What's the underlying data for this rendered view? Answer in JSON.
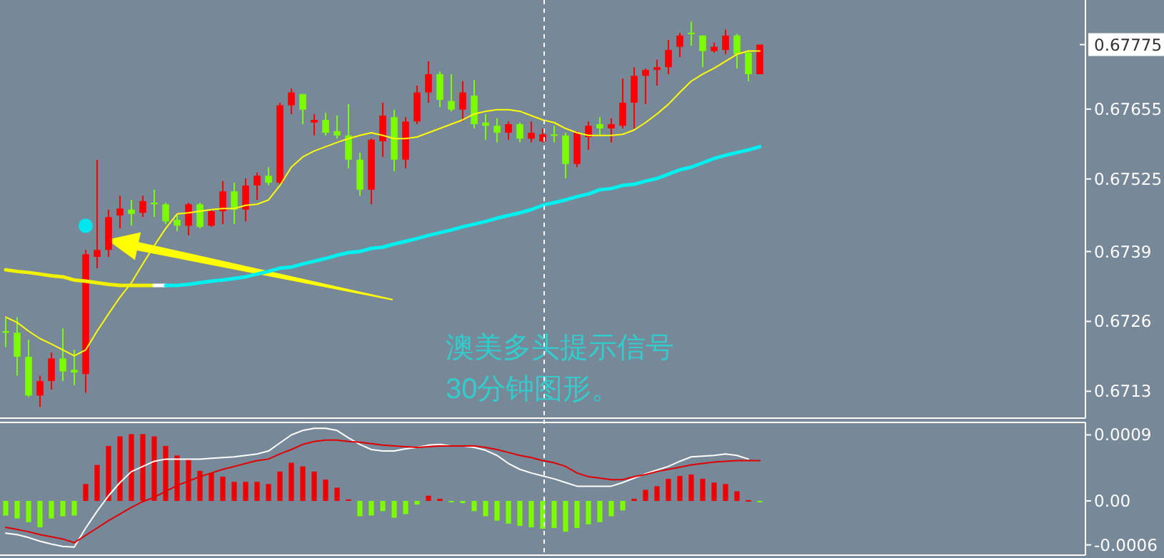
{
  "chart_data": [
    {
      "type": "candlestick",
      "categories": [
        null,
        null,
        null,
        null,
        null,
        null,
        null,
        null,
        null,
        null,
        null,
        null,
        null,
        null,
        null,
        null,
        null,
        null,
        null,
        null,
        null,
        null,
        null,
        null,
        null,
        null,
        null,
        null,
        null,
        null,
        null,
        null,
        null,
        null,
        null,
        null,
        null,
        null,
        null,
        null,
        null,
        null,
        null,
        null,
        null,
        null,
        null,
        null,
        null,
        null,
        null,
        null,
        null,
        null,
        null,
        null,
        null,
        null,
        null,
        null,
        null,
        null,
        null,
        null,
        null,
        null,
        null
      ],
      "ohlc": [
        [
          0.67242,
          0.67266,
          0.67212,
          0.67239
        ],
        [
          0.67239,
          0.67268,
          0.67159,
          0.67194
        ],
        [
          0.67194,
          0.67226,
          0.67119,
          0.67122
        ],
        [
          0.67122,
          0.67159,
          0.67101,
          0.67149
        ],
        [
          0.67149,
          0.67202,
          0.67133,
          0.67191
        ],
        [
          0.67191,
          0.67247,
          0.67149,
          0.67167
        ],
        [
          0.6717,
          0.67207,
          0.67141,
          0.67165
        ],
        [
          0.67162,
          0.67393,
          0.67127,
          0.67385
        ],
        [
          0.6738,
          0.67561,
          0.67359,
          0.67393
        ],
        [
          0.67393,
          0.67468,
          0.6738,
          0.67454
        ],
        [
          0.67457,
          0.67494,
          0.67433,
          0.6747
        ],
        [
          0.67468,
          0.67486,
          0.67438,
          0.6746
        ],
        [
          0.67462,
          0.67494,
          0.67454,
          0.67484
        ],
        [
          0.67481,
          0.67505,
          0.67454,
          0.67478
        ],
        [
          0.67478,
          0.67481,
          0.67441,
          0.67446
        ],
        [
          0.67449,
          0.6746,
          0.67428,
          0.67438
        ],
        [
          0.67438,
          0.67481,
          0.6742,
          0.67478
        ],
        [
          0.67478,
          0.67481,
          0.67433,
          0.67436
        ],
        [
          0.67438,
          0.67468,
          0.67436,
          0.67465
        ],
        [
          0.67465,
          0.67521,
          0.67441,
          0.67502
        ],
        [
          0.67502,
          0.67518,
          0.67441,
          0.67468
        ],
        [
          0.67468,
          0.67526,
          0.67446,
          0.67513
        ],
        [
          0.67513,
          0.67537,
          0.67486,
          0.67531
        ],
        [
          0.67531,
          0.67547,
          0.67513,
          0.67518
        ],
        [
          0.67518,
          0.67667,
          0.67513,
          0.67662
        ],
        [
          0.67662,
          0.67693,
          0.67646,
          0.67686
        ],
        [
          0.67683,
          0.67683,
          0.67627,
          0.67654
        ],
        [
          0.6763,
          0.67646,
          0.67606,
          0.67635
        ],
        [
          0.67635,
          0.67648,
          0.67606,
          0.67611
        ],
        [
          0.67614,
          0.67643,
          0.676,
          0.67606
        ],
        [
          0.67606,
          0.67664,
          0.67545,
          0.67561
        ],
        [
          0.67561,
          0.67574,
          0.67494,
          0.67505
        ],
        [
          0.67505,
          0.676,
          0.67478,
          0.67598
        ],
        [
          0.67595,
          0.67667,
          0.67566,
          0.67643
        ],
        [
          0.6764,
          0.67654,
          0.67539,
          0.67561
        ],
        [
          0.67561,
          0.6764,
          0.67545,
          0.67632
        ],
        [
          0.67632,
          0.67699,
          0.67627,
          0.67686
        ],
        [
          0.67686,
          0.67744,
          0.67667,
          0.6772
        ],
        [
          0.6772,
          0.67725,
          0.67659,
          0.67672
        ],
        [
          0.6767,
          0.6772,
          0.67651,
          0.67654
        ],
        [
          0.67654,
          0.67707,
          0.67632,
          0.67686
        ],
        [
          0.6768,
          0.67709,
          0.67619,
          0.67627
        ],
        [
          0.6763,
          0.67646,
          0.67598,
          0.67624
        ],
        [
          0.67624,
          0.67638,
          0.67593,
          0.67611
        ],
        [
          0.67611,
          0.67632,
          0.67598,
          0.67627
        ],
        [
          0.67627,
          0.6763,
          0.67593,
          0.676
        ],
        [
          0.676,
          0.67632,
          0.67593,
          0.67611
        ],
        [
          0.67595,
          0.67619,
          0.67593,
          0.67608
        ],
        [
          0.67608,
          0.67624,
          0.67593,
          0.67606
        ],
        [
          0.67606,
          0.67611,
          0.67526,
          0.67553
        ],
        [
          0.67553,
          0.67614,
          0.67547,
          0.67611
        ],
        [
          0.67603,
          0.67632,
          0.67579,
          0.67624
        ],
        [
          0.67627,
          0.6764,
          0.67606,
          0.67619
        ],
        [
          0.67619,
          0.67638,
          0.67593,
          0.67627
        ],
        [
          0.67624,
          0.67712,
          0.67619,
          0.67667
        ],
        [
          0.67667,
          0.67733,
          0.67619,
          0.67717
        ],
        [
          0.67717,
          0.67731,
          0.67664,
          0.67728
        ],
        [
          0.67728,
          0.67747,
          0.67699,
          0.67733
        ],
        [
          0.67733,
          0.67784,
          0.6772,
          0.67765
        ],
        [
          0.67771,
          0.67797,
          0.67752,
          0.67792
        ],
        [
          0.67797,
          0.67818,
          0.67773,
          0.67795
        ],
        [
          0.67792,
          0.67792,
          0.67733,
          0.67763
        ],
        [
          0.67763,
          0.67779,
          0.6776,
          0.67771
        ],
        [
          0.67765,
          0.67803,
          0.67757,
          0.67792
        ],
        [
          0.67792,
          0.67795,
          0.67731,
          0.67757
        ],
        [
          0.6776,
          0.67765,
          0.67707,
          0.6772
        ],
        [
          0.6772,
          0.67775,
          0.6772,
          0.67775
        ]
      ],
      "colors": [
        "#7cfc00",
        "#7cfc00",
        "#7cfc00",
        "#ff0000",
        "#ff0000",
        "#7cfc00",
        "#7cfc00",
        "#ff0000",
        "#ff0000",
        "#ff0000",
        "#ff0000",
        "#7cfc00",
        "#ff0000",
        "#7cfc00",
        "#7cfc00",
        "#7cfc00",
        "#ff0000",
        "#7cfc00",
        "#ff0000",
        "#ff0000",
        "#7cfc00",
        "#ff0000",
        "#ff0000",
        "#7cfc00",
        "#ff0000",
        "#ff0000",
        "#7cfc00",
        "#ff0000",
        "#7cfc00",
        "#7cfc00",
        "#7cfc00",
        "#7cfc00",
        "#ff0000",
        "#ff0000",
        "#7cfc00",
        "#ff0000",
        "#ff0000",
        "#ff0000",
        "#7cfc00",
        "#7cfc00",
        "#ff0000",
        "#7cfc00",
        "#7cfc00",
        "#7cfc00",
        "#ff0000",
        "#7cfc00",
        "#ff0000",
        "#ff0000",
        "#7cfc00",
        "#7cfc00",
        "#ff0000",
        "#ff0000",
        "#7cfc00",
        "#ff0000",
        "#ff0000",
        "#ff0000",
        "#ff0000",
        "#ff0000",
        "#ff0000",
        "#ff0000",
        "#7cfc00",
        "#7cfc00",
        "#ff0000",
        "#ff0000",
        "#7cfc00",
        "#7cfc00",
        "#ff0000"
      ],
      "series": [
        {
          "type": "line",
          "color": "#ffff00",
          "values": [
            0.67268,
            0.67258,
            0.67242,
            0.67228,
            0.67218,
            0.67207,
            0.67196,
            0.67207,
            0.67242,
            0.67274,
            0.67305,
            0.67332,
            0.67367,
            0.67401,
            0.67433,
            0.6746,
            0.67462,
            0.67465,
            0.67468,
            0.6747,
            0.6747,
            0.67476,
            0.67478,
            0.67486,
            0.67513,
            0.67547,
            0.67566,
            0.67577,
            0.67585,
            0.67593,
            0.676,
            0.67606,
            0.67611,
            0.67606,
            0.676,
            0.676,
            0.67603,
            0.67611,
            0.67619,
            0.67627,
            0.67635,
            0.67646,
            0.67651,
            0.67654,
            0.67654,
            0.67651,
            0.67643,
            0.67635,
            0.6763,
            0.67619,
            0.67611,
            0.67606,
            0.67606,
            0.67606,
            0.67608,
            0.67616,
            0.6763,
            0.67646,
            0.67664,
            0.67686,
            0.67707,
            0.6772,
            0.67731,
            0.67744,
            0.67757,
            0.67763,
            0.67763
          ]
        },
        {
          "type": "line",
          "color": "#f0f000",
          "values": [
            0.67356,
            0.67353,
            0.67351,
            0.67348,
            0.67345,
            0.67343,
            0.67337,
            0.67335,
            0.67332,
            0.67329,
            0.67327,
            0.67327,
            0.67327,
            0.67327,
            null,
            null,
            null,
            null,
            null,
            null,
            null,
            null,
            null,
            null,
            null,
            null,
            null,
            null,
            null,
            null,
            null,
            null,
            null,
            null,
            null,
            null,
            null,
            null,
            null,
            null,
            null,
            null,
            null,
            null,
            null,
            null,
            null,
            null,
            null,
            null,
            null,
            null,
            null,
            null,
            null,
            null,
            null,
            null,
            null,
            null,
            null,
            null,
            null,
            null,
            null,
            null,
            null
          ]
        },
        {
          "type": "line",
          "color": "#ffffff",
          "values": [
            null,
            null,
            null,
            null,
            null,
            null,
            null,
            null,
            null,
            null,
            null,
            null,
            null,
            0.67327,
            0.67327,
            null,
            null,
            null,
            null,
            null,
            null,
            null,
            null,
            null,
            null,
            null,
            null,
            null,
            null,
            null,
            null,
            null,
            null,
            null,
            null,
            null,
            null,
            null,
            null,
            null,
            null,
            null,
            null,
            null,
            null,
            null,
            null,
            null,
            null,
            null,
            null,
            null,
            null,
            null,
            null,
            null,
            null,
            null,
            null,
            null,
            null,
            null,
            null,
            null,
            null,
            null,
            null
          ]
        },
        {
          "type": "line",
          "color": "#00f0f0",
          "values": [
            null,
            null,
            null,
            null,
            null,
            null,
            null,
            null,
            null,
            null,
            null,
            null,
            null,
            null,
            0.67327,
            0.67327,
            0.67329,
            0.67332,
            0.67335,
            0.67337,
            0.6734,
            0.67343,
            0.67348,
            0.67353,
            0.67359,
            0.67361,
            0.67367,
            0.67372,
            0.67377,
            0.67383,
            0.67388,
            0.6739,
            0.67396,
            0.67398,
            0.67404,
            0.67409,
            0.67414,
            0.6742,
            0.67425,
            0.6743,
            0.67436,
            0.67441,
            0.67446,
            0.67452,
            0.67457,
            0.67462,
            0.67468,
            0.67476,
            0.67481,
            0.67486,
            0.67492,
            0.67497,
            0.67505,
            0.67507,
            0.67513,
            0.67515,
            0.67521,
            0.67526,
            0.67534,
            0.67542,
            0.67547,
            0.67555,
            0.67563,
            0.67569,
            0.67574,
            0.67579,
            0.67585
          ]
        },
        {
          "type": "scatter",
          "color": "#00e5ee",
          "values": [
            null,
            null,
            null,
            null,
            null,
            null,
            null,
            0.67438,
            null,
            null,
            null,
            null,
            null,
            null,
            null,
            null,
            null,
            null,
            null,
            null,
            null,
            null,
            null,
            null,
            null,
            null,
            null,
            null,
            null,
            null,
            null,
            null,
            null,
            null,
            null,
            null,
            null,
            null,
            null,
            null,
            null,
            null,
            null,
            null,
            null,
            null,
            null,
            null,
            null,
            null,
            null,
            null,
            null,
            null,
            null,
            null,
            null,
            null,
            null,
            null,
            null,
            null,
            null,
            null,
            null,
            null,
            null
          ]
        }
      ],
      "ylim": [
        0.6708,
        0.67858
      ],
      "yticks": [
        0.6713,
        0.6726,
        0.6739,
        0.67525,
        0.67655
      ],
      "ref_lines": [
        {
          "axis": "y",
          "value": 0.67775,
          "label": "0.67775",
          "color": "#ffffff"
        }
      ],
      "annotations": [
        "澳美多头提示信号",
        "30分钟图形。"
      ]
    },
    {
      "type": "bar",
      "categories": [
        null,
        null,
        null,
        null,
        null,
        null,
        null,
        null,
        null,
        null,
        null,
        null,
        null,
        null,
        null,
        null,
        null,
        null,
        null,
        null,
        null,
        null,
        null,
        null,
        null,
        null,
        null,
        null,
        null,
        null,
        null,
        null,
        null,
        null,
        null,
        null,
        null,
        null,
        null,
        null,
        null,
        null,
        null,
        null,
        null,
        null,
        null,
        null,
        null,
        null,
        null,
        null,
        null,
        null,
        null,
        null,
        null,
        null,
        null,
        null,
        null,
        null,
        null,
        null,
        null,
        null,
        null
      ],
      "values": [
        -0.0002,
        -0.00024,
        -0.00029,
        -0.00036,
        -0.00024,
        -0.00021,
        -0.0002,
        0.00023,
        0.00049,
        0.00075,
        0.00088,
        0.00091,
        0.00091,
        0.00088,
        0.00075,
        0.00062,
        0.00056,
        0.00041,
        0.00038,
        0.00033,
        0.00026,
        0.00026,
        0.00026,
        0.00023,
        0.0004,
        0.00052,
        0.00047,
        0.0004,
        0.00029,
        0.00018,
        2e-05,
        -0.00021,
        -0.0002,
        -0.00014,
        -0.00023,
        -0.00018,
        -5e-05,
        7e-05,
        3e-05,
        -1e-05,
        -3e-05,
        -0.00014,
        -0.00021,
        -0.00027,
        -0.00031,
        -0.00034,
        -0.00036,
        -0.00038,
        -0.00037,
        -0.00042,
        -0.00037,
        -0.00032,
        -0.00029,
        -0.00021,
        -0.00013,
        3e-05,
        0.00015,
        0.0002,
        0.0003,
        0.00034,
        0.00036,
        0.0003,
        0.00025,
        0.00023,
        0.00013,
        1e-05,
        -1e-05
      ],
      "colors": [
        "#7cfc00",
        "#7cfc00",
        "#7cfc00",
        "#7cfc00",
        "#7cfc00",
        "#7cfc00",
        "#7cfc00",
        "#ee0000",
        "#ee0000",
        "#ee0000",
        "#ee0000",
        "#ee0000",
        "#ee0000",
        "#ee0000",
        "#ee0000",
        "#ee0000",
        "#ee0000",
        "#ee0000",
        "#ee0000",
        "#ee0000",
        "#ee0000",
        "#ee0000",
        "#ee0000",
        "#ee0000",
        "#ee0000",
        "#ee0000",
        "#ee0000",
        "#ee0000",
        "#ee0000",
        "#ee0000",
        "#ee0000",
        "#7cfc00",
        "#7cfc00",
        "#7cfc00",
        "#7cfc00",
        "#7cfc00",
        "#7cfc00",
        "#ee0000",
        "#ee0000",
        "#7cfc00",
        "#7cfc00",
        "#7cfc00",
        "#7cfc00",
        "#7cfc00",
        "#7cfc00",
        "#7cfc00",
        "#7cfc00",
        "#7cfc00",
        "#7cfc00",
        "#7cfc00",
        "#7cfc00",
        "#7cfc00",
        "#7cfc00",
        "#7cfc00",
        "#7cfc00",
        "#ee0000",
        "#ee0000",
        "#ee0000",
        "#ee0000",
        "#ee0000",
        "#ee0000",
        "#ee0000",
        "#ee0000",
        "#ee0000",
        "#ee0000",
        "#ee0000",
        "#7cfc00"
      ],
      "series": [
        {
          "type": "line",
          "color": "#ffffff",
          "values": [
            -0.00044,
            -0.00046,
            -0.0005,
            -0.00055,
            -0.00059,
            -0.00062,
            -0.00063,
            -0.00037,
            -0.00014,
            7e-05,
            0.00025,
            0.0004,
            0.00047,
            0.00054,
            0.00057,
            0.00057,
            0.00057,
            0.00057,
            0.00058,
            0.00059,
            0.0006,
            0.00062,
            0.00064,
            0.00068,
            0.00079,
            0.0009,
            0.00096,
            0.00099,
            0.00099,
            0.00096,
            0.00086,
            0.00077,
            0.0007,
            0.00068,
            0.00068,
            0.00071,
            0.00073,
            0.00076,
            0.00077,
            0.00075,
            0.00075,
            0.00073,
            0.00069,
            0.00062,
            0.00051,
            0.00043,
            0.00038,
            0.00034,
            0.0003,
            0.00025,
            0.0002,
            0.0002,
            0.0002,
            0.0002,
            0.00025,
            0.00031,
            0.00037,
            0.00042,
            0.00047,
            0.00054,
            0.0006,
            0.00061,
            0.00062,
            0.00064,
            0.00062,
            0.00057,
            null
          ]
        },
        {
          "type": "line",
          "color": "#e00000",
          "values": [
            -0.00036,
            -0.00039,
            -0.00042,
            -0.00046,
            -0.00049,
            -0.00052,
            -0.00057,
            -0.00047,
            -0.00037,
            -0.00027,
            -0.00018,
            -9e-05,
            -1e-05,
            5e-05,
            0.00013,
            0.00021,
            0.00027,
            0.00033,
            0.00038,
            0.00043,
            0.00047,
            0.00051,
            0.00055,
            0.00057,
            0.00064,
            0.0007,
            0.00077,
            0.00081,
            0.00083,
            0.00083,
            0.00081,
            0.0008,
            0.00078,
            0.00076,
            0.00075,
            0.00074,
            0.00073,
            0.00074,
            0.00075,
            0.00075,
            0.00075,
            0.00075,
            0.00073,
            0.0007,
            0.00066,
            0.00062,
            0.00059,
            0.00055,
            0.00052,
            0.00047,
            0.00038,
            0.00033,
            0.00031,
            0.00029,
            0.00029,
            0.00033,
            0.00036,
            0.0004,
            0.00043,
            0.00046,
            0.00049,
            0.00051,
            0.00053,
            0.00054,
            0.00055,
            0.00055,
            0.00055
          ]
        }
      ],
      "ylim": [
        -0.00074,
        0.00107
      ],
      "yticks": [
        {
          "value": 0.0009,
          "label": "0.0009"
        },
        {
          "value": 0,
          "label": "0.00"
        },
        {
          "value": -0.0006,
          "label": "-0.0006"
        }
      ]
    }
  ]
}
